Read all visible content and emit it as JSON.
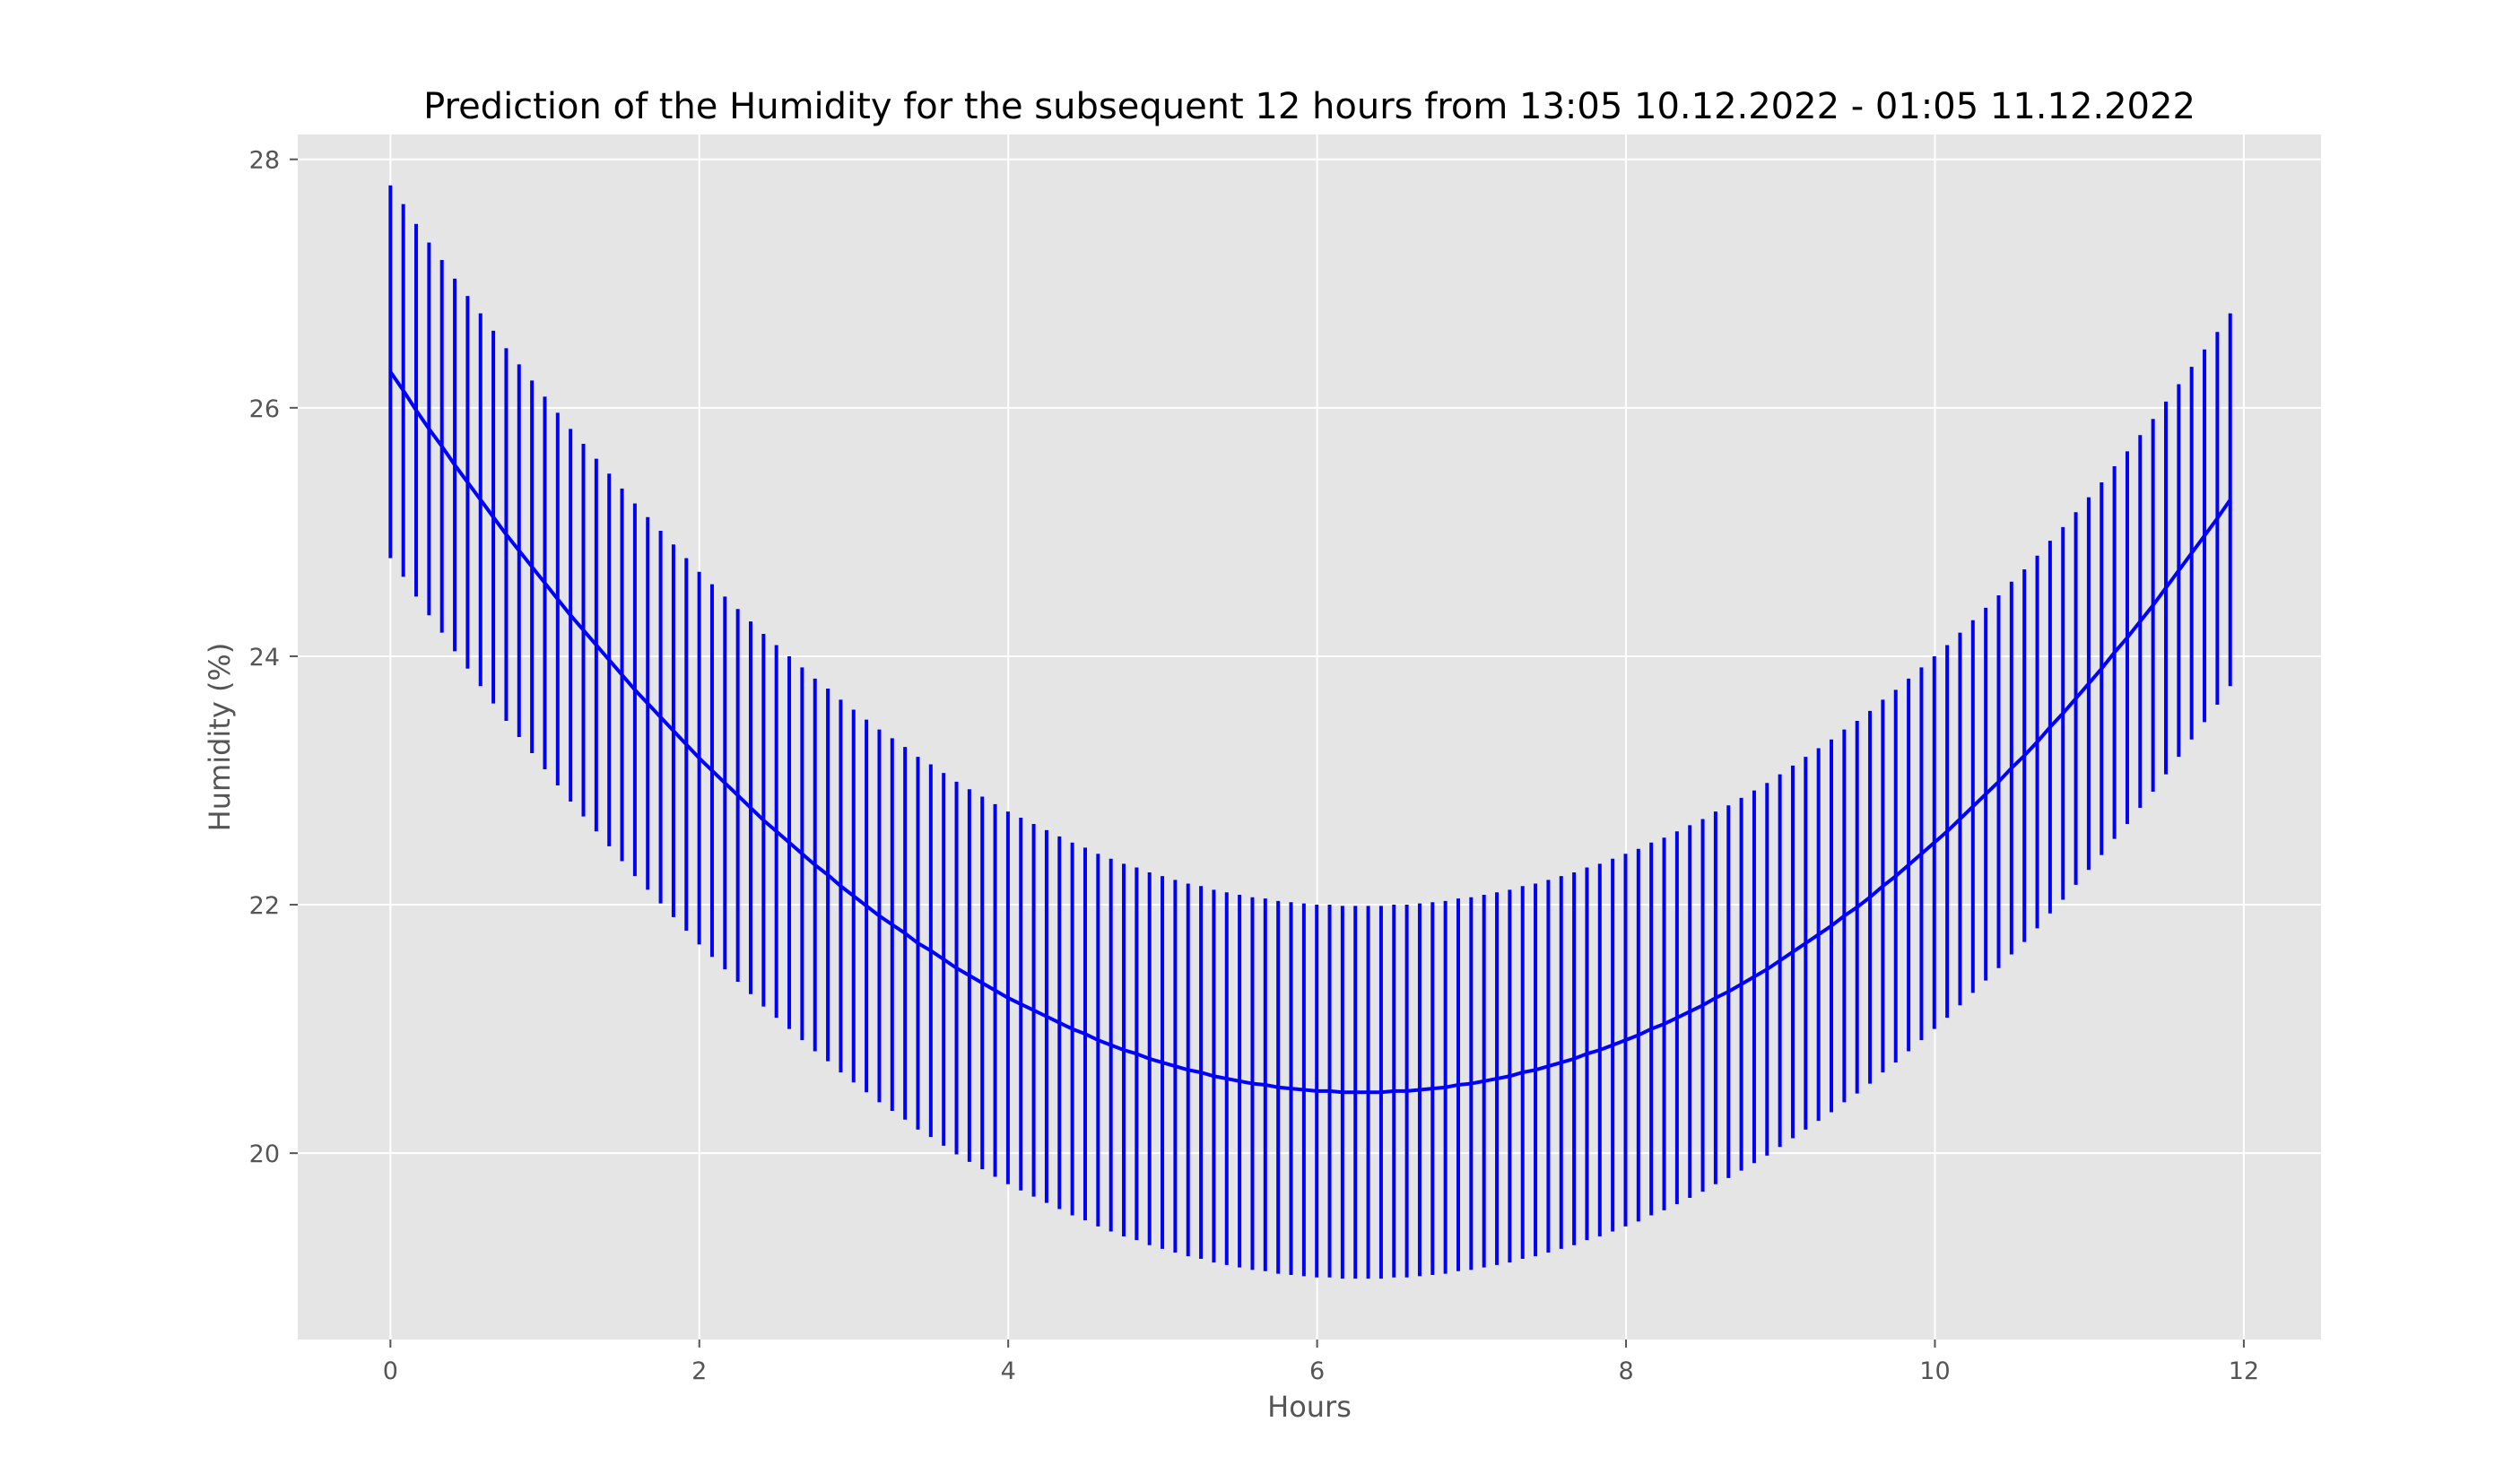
{
  "chart_data": {
    "type": "line",
    "title": "Prediction of the Humidity for the subsequent 12 hours from 13:05 10.12.2022 - 01:05 11.12.2022",
    "xlabel": "Hours",
    "ylabel": "Humidity (%)",
    "xlim": [
      -0.6,
      12.5
    ],
    "ylim": [
      18.5,
      28.2
    ],
    "xticks": [
      0,
      2,
      4,
      6,
      8,
      10,
      12
    ],
    "yticks": [
      20,
      22,
      24,
      26,
      28
    ],
    "grid": true,
    "legend": "none",
    "error_band_half_width": 1.5,
    "series": [
      {
        "x_start": 0,
        "x_step": 0.0833,
        "points": 144,
        "values": [
          26.29,
          26.14,
          25.98,
          25.83,
          25.69,
          25.54,
          25.4,
          25.26,
          25.12,
          24.98,
          24.85,
          24.72,
          24.59,
          24.46,
          24.33,
          24.21,
          24.09,
          23.97,
          23.85,
          23.73,
          23.62,
          23.51,
          23.4,
          23.29,
          23.18,
          23.08,
          22.98,
          22.88,
          22.78,
          22.68,
          22.59,
          22.5,
          22.41,
          22.32,
          22.24,
          22.15,
          22.07,
          21.99,
          21.91,
          21.84,
          21.77,
          21.69,
          21.63,
          21.56,
          21.49,
          21.43,
          21.37,
          21.31,
          21.25,
          21.2,
          21.15,
          21.1,
          21.05,
          21.0,
          20.96,
          20.91,
          20.87,
          20.83,
          20.8,
          20.76,
          20.73,
          20.7,
          20.67,
          20.65,
          20.62,
          20.6,
          20.58,
          20.56,
          20.55,
          20.53,
          20.52,
          20.51,
          20.5,
          20.5,
          20.49,
          20.49,
          20.49,
          20.49,
          20.5,
          20.5,
          20.51,
          20.52,
          20.53,
          20.55,
          20.56,
          20.58,
          20.6,
          20.62,
          20.65,
          20.67,
          20.7,
          20.73,
          20.76,
          20.8,
          20.83,
          20.87,
          20.91,
          20.95,
          21.0,
          21.04,
          21.09,
          21.14,
          21.19,
          21.25,
          21.3,
          21.36,
          21.42,
          21.48,
          21.55,
          21.62,
          21.69,
          21.76,
          21.83,
          21.91,
          21.98,
          22.06,
          22.15,
          22.23,
          22.32,
          22.41,
          22.5,
          22.59,
          22.69,
          22.79,
          22.89,
          22.99,
          23.1,
          23.2,
          23.31,
          23.43,
          23.54,
          23.66,
          23.78,
          23.9,
          24.03,
          24.15,
          24.28,
          24.41,
          24.55,
          24.69,
          24.83,
          24.97,
          25.11,
          25.26
        ],
        "color": "#0000ff"
      }
    ],
    "colors": {
      "plot_background": "#e5e5e5",
      "grid": "#ffffff",
      "line": "#0000ff"
    }
  }
}
